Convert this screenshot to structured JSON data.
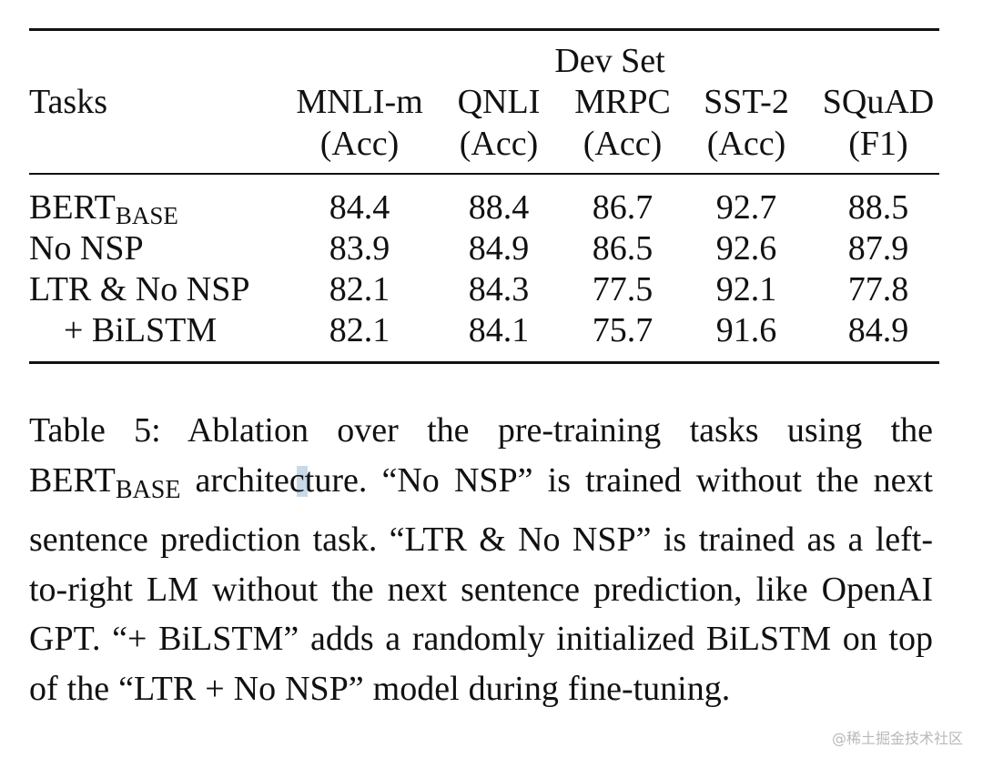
{
  "table": {
    "spanner": "Dev Set",
    "tasks_header": "Tasks",
    "columns": [
      {
        "name": "MNLI-m",
        "metric": "(Acc)"
      },
      {
        "name": "QNLI",
        "metric": "(Acc)"
      },
      {
        "name": "MRPC",
        "metric": "(Acc)"
      },
      {
        "name": "SST-2",
        "metric": "(Acc)"
      },
      {
        "name": "SQuAD",
        "metric": "(F1)"
      }
    ],
    "rows": [
      {
        "label": "BERT",
        "label_sub": "BASE",
        "values": [
          "84.4",
          "88.4",
          "86.7",
          "92.7",
          "88.5"
        ]
      },
      {
        "label": "No NSP",
        "label_sub": "",
        "values": [
          "83.9",
          "84.9",
          "86.5",
          "92.6",
          "87.9"
        ]
      },
      {
        "label": "LTR & No NSP",
        "label_sub": "",
        "values": [
          "82.1",
          "84.3",
          "77.5",
          "92.1",
          "77.8"
        ]
      },
      {
        "label": "+ BiLSTM",
        "label_sub": "",
        "values": [
          "82.1",
          "84.1",
          "75.7",
          "91.6",
          "84.9"
        ]
      }
    ]
  },
  "caption": {
    "part1": "Table 5: Ablation over the pre-training tasks using the ",
    "bert": "BERT",
    "bert_sub": "BASE",
    "part2": " architecture. “No NSP” is trained without the next sentence prediction task. “LTR & No NSP” is trained as a left-to-right LM without the next sentence prediction, like OpenAI GPT. “+ BiLSTM” adds a randomly initialized BiLSTM on top of the “LTR + No NSP” model during fine-tuning."
  },
  "watermark": "@稀土掘金技术社区"
}
